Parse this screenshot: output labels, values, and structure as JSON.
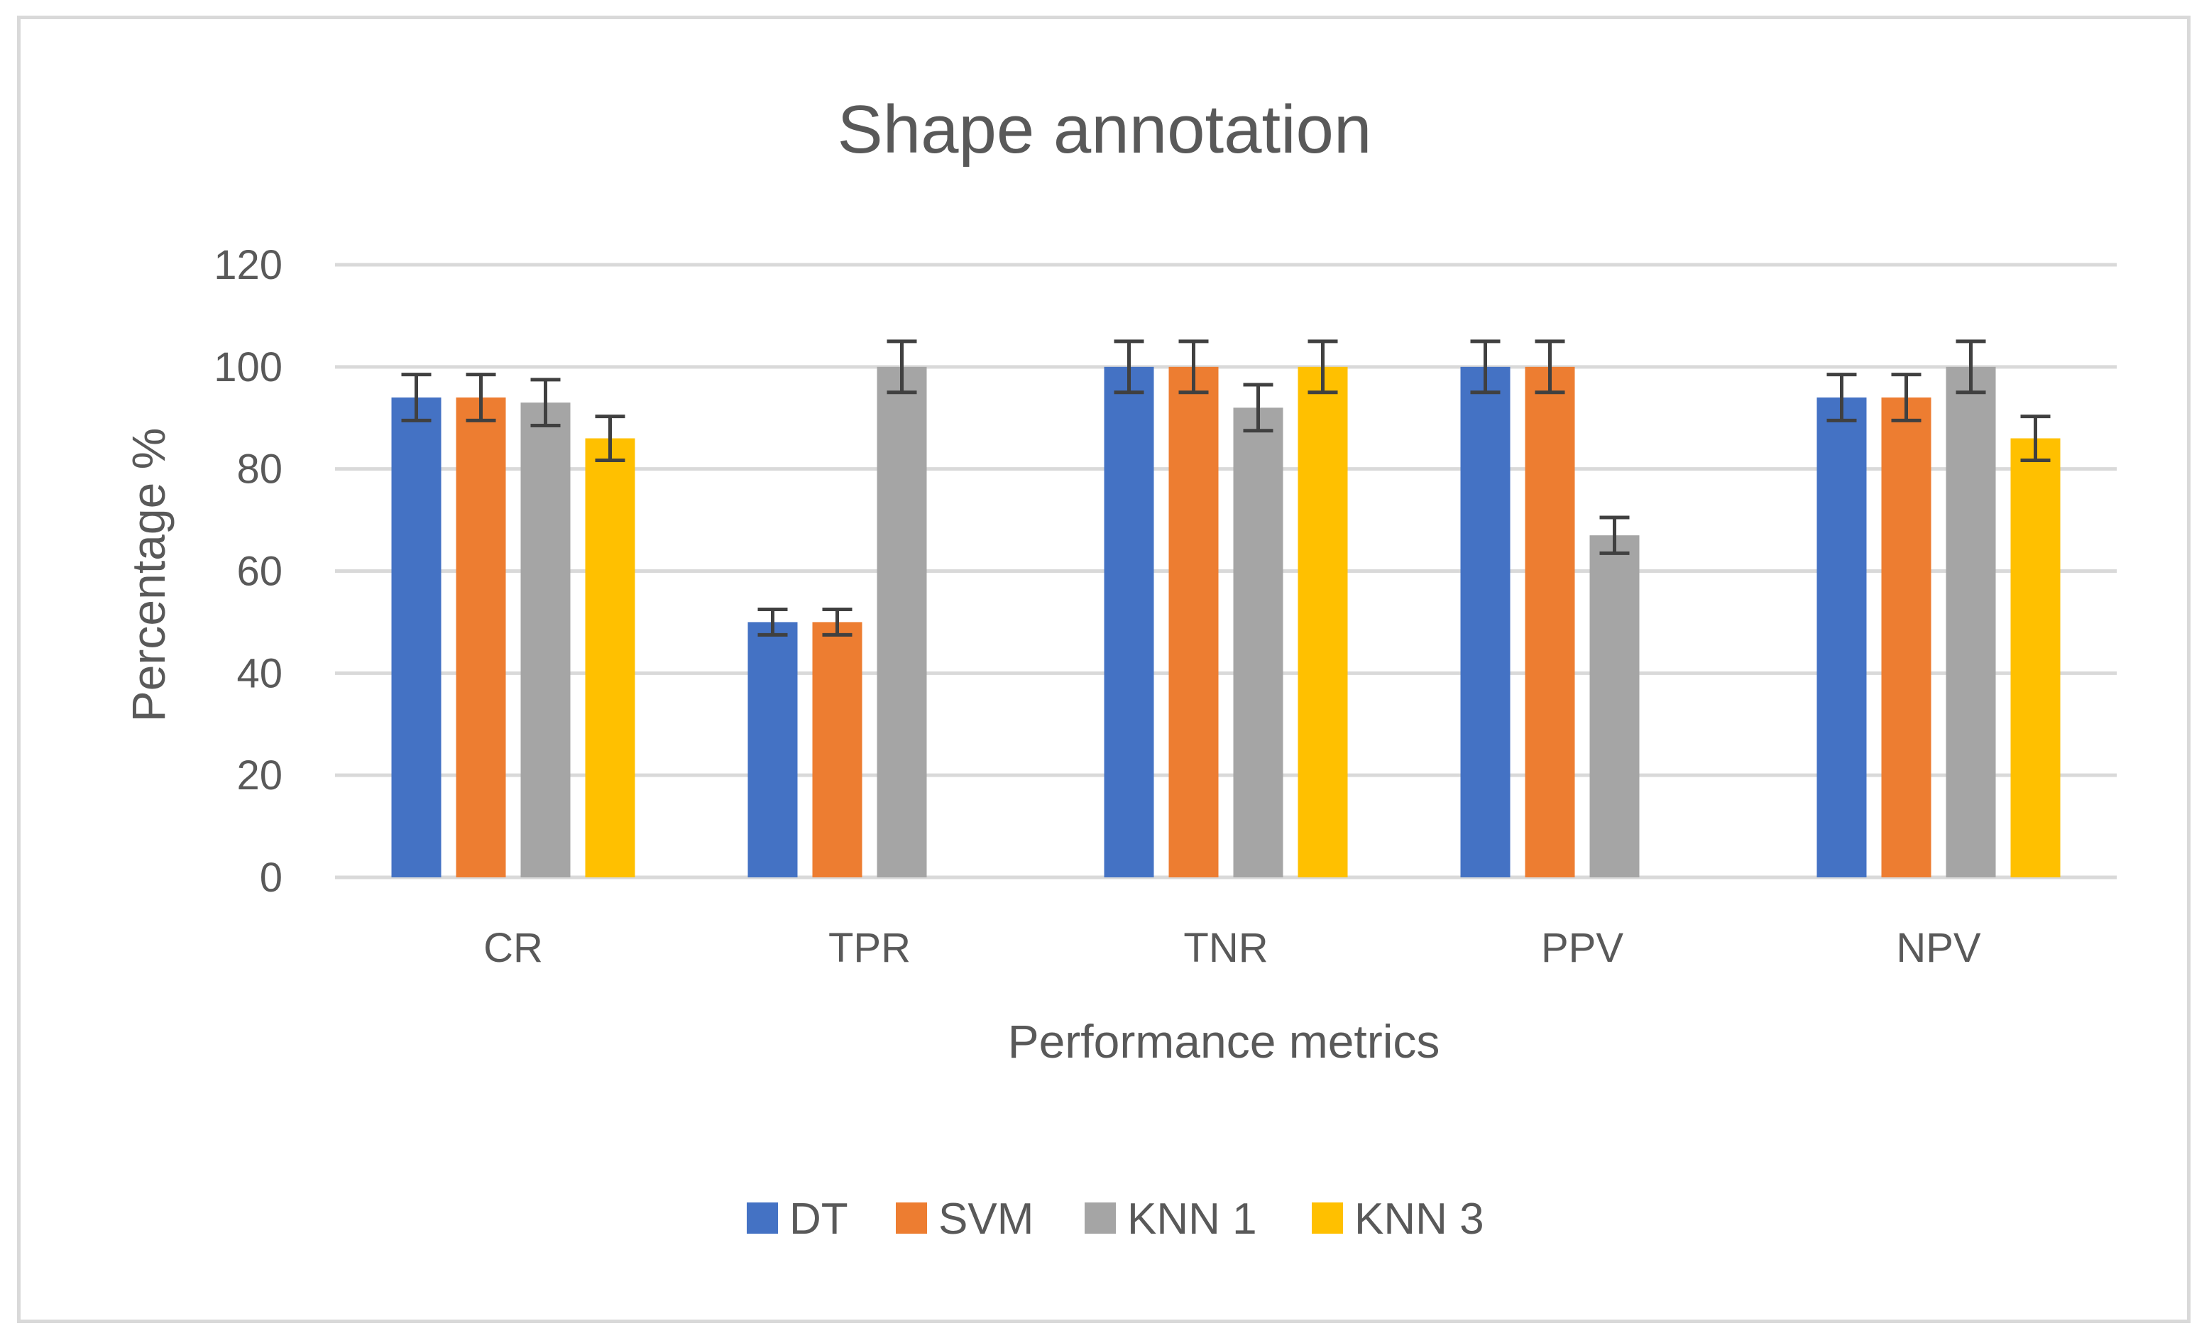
{
  "chart_data": {
    "type": "bar",
    "title": "Shape annotation",
    "xlabel": "Performance metrics",
    "ylabel": "Percentage %",
    "categories": [
      "CR",
      "TPR",
      "TNR",
      "PPV",
      "NPV"
    ],
    "ylim": [
      0,
      120
    ],
    "yticks": [
      0,
      20,
      40,
      60,
      80,
      100,
      120
    ],
    "grid": true,
    "legend_position": "bottom",
    "series": [
      {
        "name": "DT",
        "color": "#4472c4",
        "values": [
          94,
          50,
          100,
          100,
          94
        ],
        "errors": [
          4.5,
          2.5,
          5,
          5,
          4.5
        ]
      },
      {
        "name": "SVM",
        "color": "#ed7d31",
        "values": [
          94,
          50,
          100,
          100,
          94
        ],
        "errors": [
          4.5,
          2.5,
          5,
          5,
          4.5
        ]
      },
      {
        "name": "KNN 1",
        "color": "#a5a5a5",
        "values": [
          93,
          100,
          92,
          67,
          100
        ],
        "errors": [
          4.5,
          5,
          4.5,
          3.5,
          5
        ]
      },
      {
        "name": "KNN 3",
        "color": "#ffc000",
        "values": [
          86,
          null,
          100,
          null,
          86
        ],
        "errors": [
          4.3,
          null,
          5,
          null,
          4.3
        ]
      }
    ]
  }
}
